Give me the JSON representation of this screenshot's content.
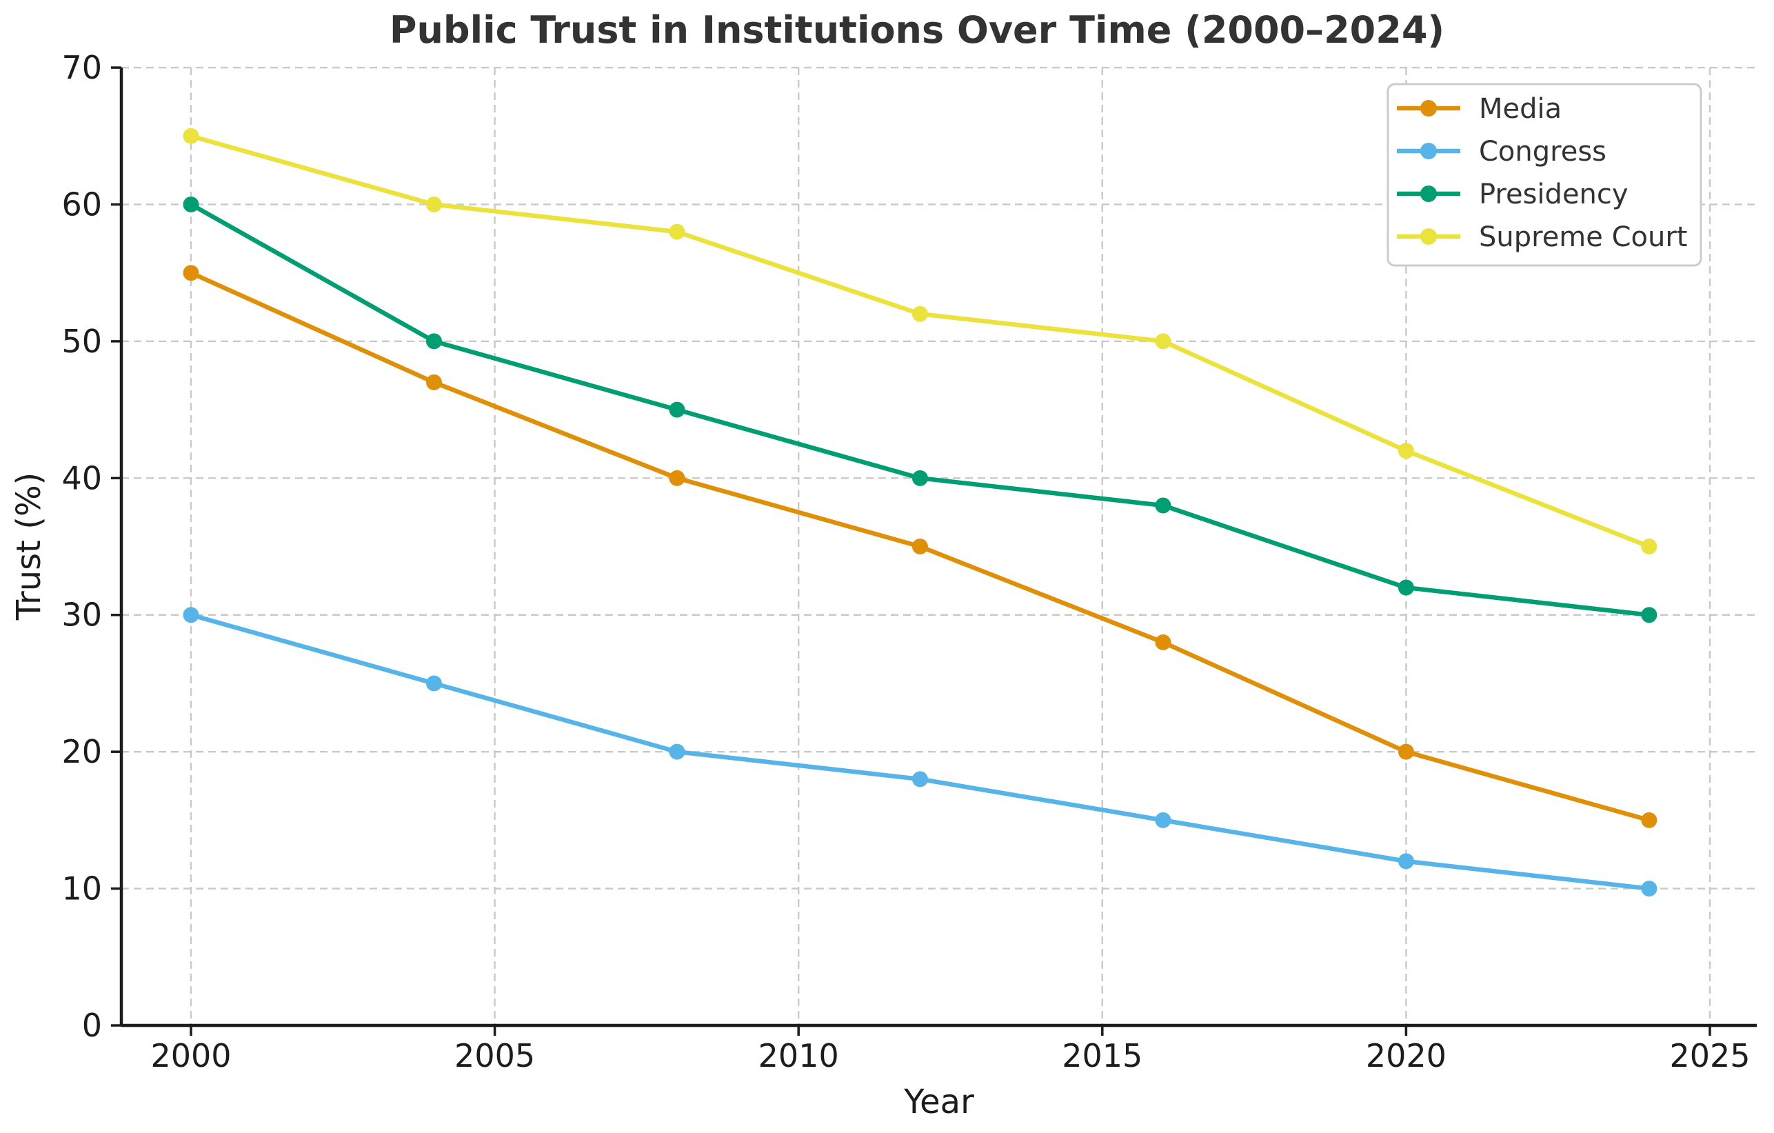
{
  "title": "Public Trust in Institutions Over Time (2000–2024)",
  "x_axis": {
    "label": "Year",
    "ticks": [
      2000,
      2005,
      2010,
      2015,
      2020,
      2025
    ]
  },
  "y_axis": {
    "label": "Trust (%)",
    "ticks": [
      0,
      10,
      20,
      30,
      40,
      50,
      60,
      70
    ]
  },
  "legend": {
    "position": "upper right",
    "items": [
      "Media",
      "Congress",
      "Presidency",
      "Supreme Court"
    ]
  },
  "style_colors": {
    "grid": "#c9c9c9",
    "spine": "#1c1c1c",
    "title_text": "#333333",
    "tick_text": "#1c1c1c",
    "legend_border": "#cccccc",
    "background": "#ffffff"
  },
  "chart_data": {
    "type": "line",
    "title": "Public Trust in Institutions Over Time (2000–2024)",
    "xlabel": "Year",
    "ylabel": "Trust (%)",
    "x": [
      2000,
      2004,
      2008,
      2012,
      2016,
      2020,
      2024
    ],
    "series": [
      {
        "name": "Media",
        "color": "#DF9008",
        "values": [
          55,
          47,
          40,
          35,
          28,
          20,
          15
        ]
      },
      {
        "name": "Congress",
        "color": "#56B4E9",
        "values": [
          30,
          25,
          20,
          18,
          15,
          12,
          10
        ]
      },
      {
        "name": "Presidency",
        "color": "#029E73",
        "values": [
          60,
          50,
          45,
          40,
          38,
          32,
          30
        ]
      },
      {
        "name": "Supreme Court",
        "color": "#ECE23C",
        "values": [
          65,
          60,
          58,
          52,
          50,
          42,
          35
        ]
      }
    ],
    "xlim": [
      1998.9,
      2025.8
    ],
    "ylim": [
      0,
      70
    ],
    "xticks": [
      2000,
      2005,
      2010,
      2015,
      2020,
      2025
    ],
    "yticks": [
      0,
      10,
      20,
      30,
      40,
      50,
      60,
      70
    ],
    "grid": "dashed, both axes",
    "legend_position": "upper right",
    "marker": "circle"
  }
}
